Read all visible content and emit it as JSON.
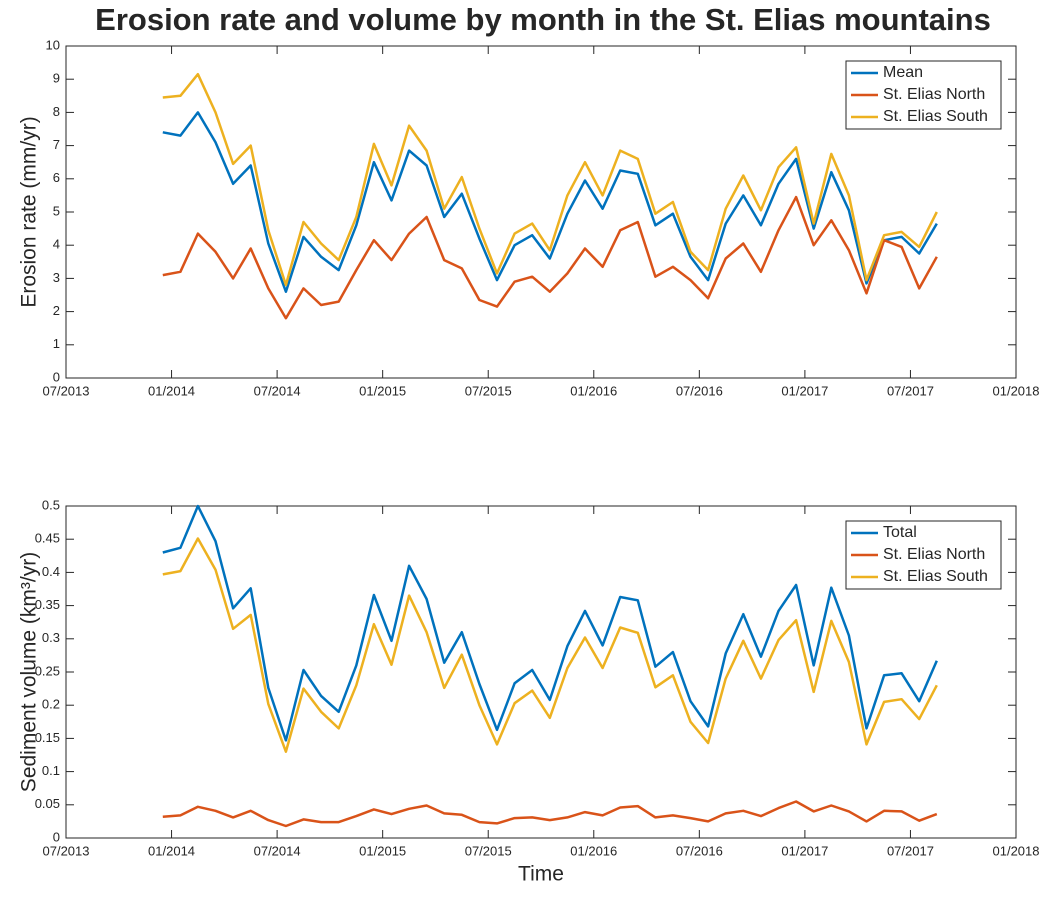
{
  "chart_data": [
    {
      "type": "line",
      "title": "Erosion rate and volume by month in the St. Elias mountains",
      "ylabel": "Erosion rate (mm/yr)",
      "x": [
        "2013-12",
        "2014-01",
        "2014-02",
        "2014-03",
        "2014-04",
        "2014-05",
        "2014-06",
        "2014-07",
        "2014-08",
        "2014-09",
        "2014-10",
        "2014-11",
        "2014-12",
        "2015-01",
        "2015-02",
        "2015-03",
        "2015-04",
        "2015-05",
        "2015-06",
        "2015-07",
        "2015-08",
        "2015-09",
        "2015-10",
        "2015-11",
        "2015-12",
        "2016-01",
        "2016-02",
        "2016-03",
        "2016-04",
        "2016-05",
        "2016-06",
        "2016-07",
        "2016-08",
        "2016-09",
        "2016-10",
        "2016-11",
        "2016-12",
        "2017-01",
        "2017-02",
        "2017-03",
        "2017-04",
        "2017-05",
        "2017-06",
        "2017-07",
        "2017-08"
      ],
      "series": [
        {
          "name": "Mean",
          "color": "#0072bd",
          "values": [
            7.4,
            7.3,
            8.0,
            7.1,
            5.85,
            6.4,
            4.05,
            2.6,
            4.25,
            3.65,
            3.25,
            4.6,
            6.5,
            5.35,
            6.85,
            6.4,
            4.85,
            5.55,
            4.2,
            2.95,
            4.0,
            4.3,
            3.6,
            4.95,
            5.95,
            5.1,
            6.25,
            6.15,
            4.6,
            4.95,
            3.65,
            2.95,
            4.65,
            5.5,
            4.6,
            5.85,
            6.6,
            4.5,
            6.2,
            5.05,
            2.85,
            4.15,
            4.25,
            3.75,
            4.65
          ]
        },
        {
          "name": "St. Elias North",
          "color": "#d95319",
          "values": [
            3.1,
            3.2,
            4.35,
            3.8,
            3.0,
            3.9,
            2.7,
            1.8,
            2.7,
            2.2,
            2.3,
            3.25,
            4.15,
            3.55,
            4.35,
            4.85,
            3.55,
            3.3,
            2.35,
            2.15,
            2.9,
            3.05,
            2.6,
            3.15,
            3.9,
            3.35,
            4.45,
            4.7,
            3.05,
            3.35,
            2.95,
            2.4,
            3.6,
            4.05,
            3.2,
            4.45,
            5.45,
            4.0,
            4.75,
            3.85,
            2.55,
            4.15,
            3.95,
            2.7,
            3.65
          ]
        },
        {
          "name": "St. Elias South",
          "color": "#edb120",
          "values": [
            8.45,
            8.5,
            9.15,
            8.0,
            6.45,
            7.0,
            4.45,
            2.8,
            4.7,
            4.05,
            3.55,
            4.85,
            7.05,
            5.8,
            7.6,
            6.85,
            5.1,
            6.05,
            4.5,
            3.15,
            4.35,
            4.65,
            3.85,
            5.5,
            6.5,
            5.5,
            6.85,
            6.6,
            4.95,
            5.3,
            3.8,
            3.25,
            5.1,
            6.1,
            5.05,
            6.35,
            6.95,
            4.65,
            6.75,
            5.5,
            2.95,
            4.3,
            4.4,
            3.95,
            5.0
          ]
        }
      ],
      "xlim": [
        "2013-07",
        "2018-01"
      ],
      "xticks": [
        {
          "value": "2013-07",
          "label": "07/2013"
        },
        {
          "value": "2014-01",
          "label": "01/2014"
        },
        {
          "value": "2014-07",
          "label": "07/2014"
        },
        {
          "value": "2015-01",
          "label": "01/2015"
        },
        {
          "value": "2015-07",
          "label": "07/2015"
        },
        {
          "value": "2016-01",
          "label": "01/2016"
        },
        {
          "value": "2016-07",
          "label": "07/2016"
        },
        {
          "value": "2017-01",
          "label": "01/2017"
        },
        {
          "value": "2017-07",
          "label": "07/2017"
        },
        {
          "value": "2018-01",
          "label": "01/2018"
        }
      ],
      "ylim": [
        0,
        10
      ],
      "yticks": [
        0,
        1,
        2,
        3,
        4,
        5,
        6,
        7,
        8,
        9,
        10
      ],
      "legend": "upper right"
    },
    {
      "type": "line",
      "ylabel": "Sediment volume (km³/yr)",
      "xlabel": "Time",
      "x": [
        "2013-12",
        "2014-01",
        "2014-02",
        "2014-03",
        "2014-04",
        "2014-05",
        "2014-06",
        "2014-07",
        "2014-08",
        "2014-09",
        "2014-10",
        "2014-11",
        "2014-12",
        "2015-01",
        "2015-02",
        "2015-03",
        "2015-04",
        "2015-05",
        "2015-06",
        "2015-07",
        "2015-08",
        "2015-09",
        "2015-10",
        "2015-11",
        "2015-12",
        "2016-01",
        "2016-02",
        "2016-03",
        "2016-04",
        "2016-05",
        "2016-06",
        "2016-07",
        "2016-08",
        "2016-09",
        "2016-10",
        "2016-11",
        "2016-12",
        "2017-01",
        "2017-02",
        "2017-03",
        "2017-04",
        "2017-05",
        "2017-06",
        "2017-07",
        "2017-08"
      ],
      "series": [
        {
          "name": "Total",
          "color": "#0072bd",
          "values": [
            0.43,
            0.437,
            0.5,
            0.447,
            0.346,
            0.376,
            0.226,
            0.147,
            0.253,
            0.214,
            0.19,
            0.26,
            0.366,
            0.297,
            0.41,
            0.36,
            0.264,
            0.31,
            0.232,
            0.163,
            0.233,
            0.253,
            0.208,
            0.289,
            0.342,
            0.29,
            0.363,
            0.358,
            0.258,
            0.28,
            0.206,
            0.168,
            0.278,
            0.337,
            0.273,
            0.342,
            0.381,
            0.26,
            0.377,
            0.305,
            0.165,
            0.245,
            0.248,
            0.206,
            0.267
          ]
        },
        {
          "name": "St. Elias North",
          "color": "#d95319",
          "values": [
            0.032,
            0.034,
            0.047,
            0.041,
            0.031,
            0.041,
            0.027,
            0.018,
            0.028,
            0.024,
            0.024,
            0.033,
            0.043,
            0.036,
            0.044,
            0.049,
            0.037,
            0.035,
            0.024,
            0.022,
            0.03,
            0.031,
            0.027,
            0.031,
            0.039,
            0.034,
            0.046,
            0.048,
            0.031,
            0.034,
            0.03,
            0.025,
            0.037,
            0.041,
            0.033,
            0.045,
            0.055,
            0.04,
            0.049,
            0.04,
            0.025,
            0.041,
            0.04,
            0.026,
            0.036
          ]
        },
        {
          "name": "St. Elias South",
          "color": "#edb120",
          "values": [
            0.397,
            0.402,
            0.451,
            0.404,
            0.315,
            0.336,
            0.202,
            0.13,
            0.225,
            0.19,
            0.165,
            0.23,
            0.322,
            0.261,
            0.365,
            0.31,
            0.226,
            0.276,
            0.2,
            0.141,
            0.203,
            0.222,
            0.181,
            0.256,
            0.302,
            0.256,
            0.317,
            0.309,
            0.227,
            0.245,
            0.175,
            0.143,
            0.24,
            0.297,
            0.24,
            0.298,
            0.328,
            0.22,
            0.327,
            0.265,
            0.141,
            0.205,
            0.209,
            0.179,
            0.23
          ]
        }
      ],
      "xlim": [
        "2013-07",
        "2018-01"
      ],
      "xticks": [
        {
          "value": "2013-07",
          "label": "07/2013"
        },
        {
          "value": "2014-01",
          "label": "01/2014"
        },
        {
          "value": "2014-07",
          "label": "07/2014"
        },
        {
          "value": "2015-01",
          "label": "01/2015"
        },
        {
          "value": "2015-07",
          "label": "07/2015"
        },
        {
          "value": "2016-01",
          "label": "01/2016"
        },
        {
          "value": "2016-07",
          "label": "07/2016"
        },
        {
          "value": "2017-01",
          "label": "01/2017"
        },
        {
          "value": "2017-07",
          "label": "07/2017"
        },
        {
          "value": "2018-01",
          "label": "01/2018"
        }
      ],
      "ylim": [
        0,
        0.5
      ],
      "yticks": [
        0,
        0.05,
        0.1,
        0.15,
        0.2,
        0.25,
        0.3,
        0.35,
        0.4,
        0.45,
        0.5
      ],
      "legend": "upper right"
    }
  ]
}
